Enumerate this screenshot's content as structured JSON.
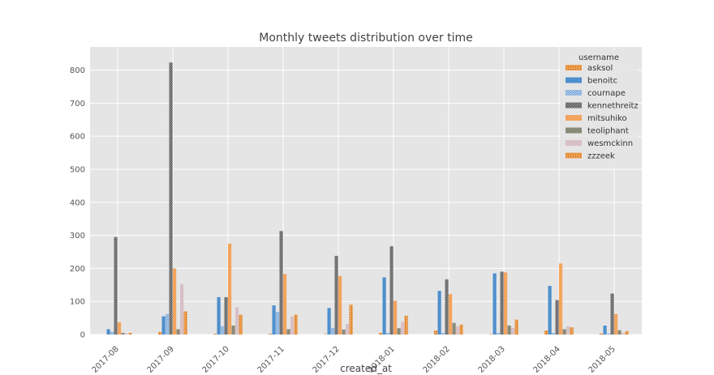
{
  "chart_data": {
    "type": "bar",
    "title": "Monthly tweets distribution over time",
    "xlabel": "created_at",
    "ylabel": "",
    "ylim": [
      0,
      870
    ],
    "yticks": [
      0,
      100,
      200,
      300,
      400,
      500,
      600,
      700,
      800
    ],
    "grid": true,
    "legend_title": "username",
    "legend_position": "top-right",
    "categories": [
      "2017-08",
      "2017-09",
      "2017-10",
      "2017-11",
      "2017-12",
      "2018-01",
      "2018-02",
      "2018-03",
      "2018-04",
      "2018-05"
    ],
    "series": [
      {
        "name": "asksol",
        "color": "#f0a050",
        "pattern": "dots",
        "values": [
          0,
          8,
          2,
          2,
          1,
          5,
          12,
          1,
          12,
          3
        ]
      },
      {
        "name": "benoitc",
        "color": "#4e8fcd",
        "pattern": "solid",
        "values": [
          16,
          55,
          113,
          88,
          80,
          173,
          132,
          185,
          147,
          27
        ]
      },
      {
        "name": "cournape",
        "color": "#6a9fd6",
        "pattern": "cross",
        "values": [
          8,
          62,
          25,
          68,
          20,
          5,
          5,
          5,
          5,
          3
        ]
      },
      {
        "name": "kennethreitz",
        "color": "#666666",
        "pattern": "cross",
        "values": [
          295,
          823,
          113,
          313,
          238,
          267,
          167,
          190,
          104,
          124
        ]
      },
      {
        "name": "mitsuhiko",
        "color": "#f3a45e",
        "pattern": "solid",
        "values": [
          37,
          200,
          275,
          183,
          177,
          102,
          122,
          188,
          215,
          62
        ]
      },
      {
        "name": "teoliphant",
        "color": "#8a8a7a",
        "pattern": "solid",
        "values": [
          5,
          16,
          27,
          16,
          15,
          19,
          35,
          27,
          16,
          13
        ]
      },
      {
        "name": "wesmckinn",
        "color": "#d8c0c5",
        "pattern": "solid",
        "values": [
          3,
          152,
          82,
          55,
          32,
          38,
          25,
          20,
          25,
          5
        ]
      },
      {
        "name": "zzzeek",
        "color": "#f0a050",
        "pattern": "dots",
        "values": [
          5,
          70,
          60,
          60,
          90,
          57,
          30,
          45,
          22,
          10
        ]
      }
    ]
  }
}
